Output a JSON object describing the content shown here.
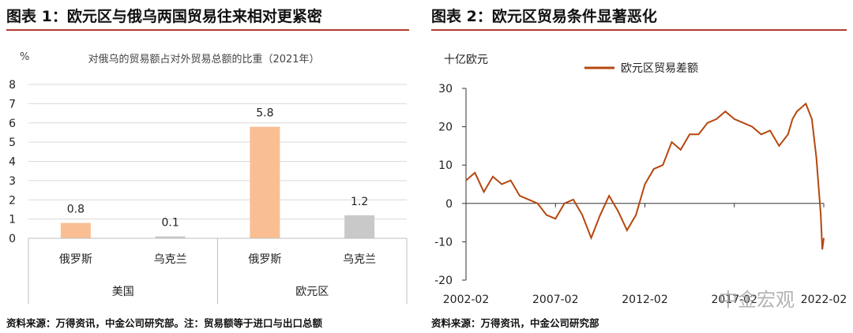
{
  "fig1": {
    "title": "图表 1：欧元区与俄乌两国贸易往来相对更紧密",
    "source": "资料来源：万得资讯，中金公司研究部。注：贸易额等于进口与出口总额",
    "unit": "%",
    "chart_title": "对俄乌的贸易额占对外贸易总额的比重（2021年）"
  },
  "fig2": {
    "title": "图表 2：欧元区贸易条件显著恶化",
    "source": "资料来源：万得资讯，中金公司研究部",
    "unit": "十亿欧元"
  },
  "watermark": "中金宏观",
  "chart_data": [
    {
      "type": "bar",
      "title": "对俄乌的贸易额占对外贸易总额的比重（2021年）",
      "ylabel": "%",
      "ylim": [
        0,
        8
      ],
      "yticks": [
        0,
        1,
        2,
        3,
        4,
        5,
        6,
        7,
        8
      ],
      "categories": [
        "俄罗斯",
        "乌克兰",
        "俄罗斯",
        "乌克兰"
      ],
      "groups": [
        {
          "name": "美国",
          "categories": [
            "俄罗斯",
            "乌克兰"
          ]
        },
        {
          "name": "欧元区",
          "categories": [
            "俄罗斯",
            "乌克兰"
          ]
        }
      ],
      "values": [
        0.8,
        0.1,
        5.8,
        1.2
      ],
      "value_labels": [
        "0.8",
        "0.1",
        "5.8",
        "1.2"
      ],
      "colors": [
        "#f9bf93",
        "#c9c9c9",
        "#f9bf93",
        "#c9c9c9"
      ],
      "grid": true
    },
    {
      "type": "line",
      "ylabel": "十亿欧元",
      "ylim": [
        -20,
        30
      ],
      "yticks": [
        -20,
        -10,
        0,
        10,
        20,
        30
      ],
      "xlim": [
        "2002-02",
        "2022-02"
      ],
      "xticks": [
        "2002-02",
        "2007-02",
        "2012-02",
        "2017-02",
        "2022-02"
      ],
      "grid": false,
      "legend": "top",
      "series": [
        {
          "name": "欧元区贸易差额",
          "color": "#b5470f",
          "x": [
            "2002-02",
            "2002-08",
            "2003-02",
            "2003-08",
            "2004-02",
            "2004-08",
            "2005-02",
            "2005-08",
            "2006-02",
            "2006-08",
            "2007-02",
            "2007-08",
            "2008-02",
            "2008-08",
            "2009-02",
            "2009-08",
            "2010-02",
            "2010-08",
            "2011-02",
            "2011-08",
            "2012-02",
            "2012-08",
            "2013-02",
            "2013-08",
            "2014-02",
            "2014-08",
            "2015-02",
            "2015-08",
            "2016-02",
            "2016-08",
            "2017-02",
            "2017-08",
            "2018-02",
            "2018-08",
            "2019-02",
            "2019-08",
            "2020-02",
            "2020-05",
            "2020-08",
            "2021-02",
            "2021-06",
            "2021-09",
            "2021-12",
            "2022-01",
            "2022-02"
          ],
          "values": [
            6,
            8,
            3,
            7,
            5,
            6,
            2,
            1,
            0,
            -3,
            -4,
            0,
            1,
            -3,
            -9,
            -3,
            2,
            -2,
            -7,
            -3,
            5,
            9,
            10,
            16,
            14,
            18,
            18,
            21,
            22,
            24,
            22,
            21,
            20,
            18,
            19,
            15,
            18,
            22,
            24,
            26,
            22,
            12,
            -3,
            -12,
            -9
          ]
        }
      ]
    }
  ]
}
